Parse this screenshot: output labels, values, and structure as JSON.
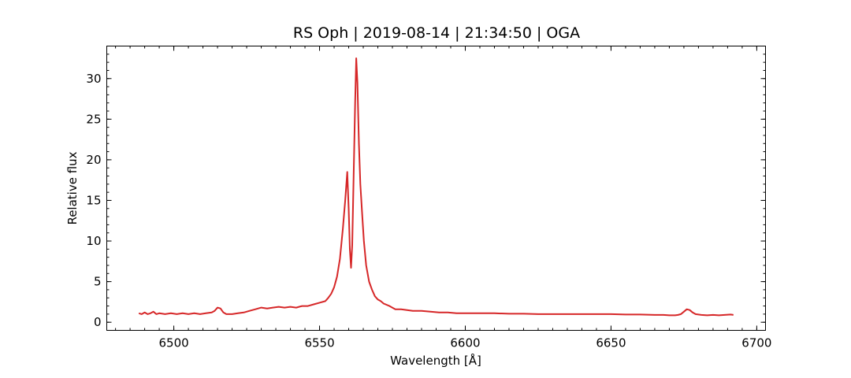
{
  "chart_data": {
    "type": "line",
    "title": "RS Oph | 2019-08-14 | 21:34:50 | OGA",
    "xlabel": "Wavelength [Å]",
    "ylabel": "Relative flux",
    "xlim": [
      6477,
      6703
    ],
    "ylim": [
      -1,
      34
    ],
    "xticks": [
      6500,
      6550,
      6600,
      6650,
      6700
    ],
    "yticks": [
      0,
      5,
      10,
      15,
      20,
      25,
      30
    ],
    "x_minor_step": 5,
    "y_minor_step": 1,
    "grid": false,
    "color": "#d62728",
    "series": [
      {
        "points": [
          [
            6488,
            1.1
          ],
          [
            6489,
            1.0
          ],
          [
            6490,
            1.2
          ],
          [
            6491,
            1.0
          ],
          [
            6492,
            1.1
          ],
          [
            6493,
            1.3
          ],
          [
            6494,
            1.0
          ],
          [
            6495,
            1.1
          ],
          [
            6497,
            1.0
          ],
          [
            6499,
            1.1
          ],
          [
            6501,
            1.0
          ],
          [
            6503,
            1.1
          ],
          [
            6505,
            1.0
          ],
          [
            6507,
            1.1
          ],
          [
            6509,
            1.0
          ],
          [
            6511,
            1.1
          ],
          [
            6513,
            1.2
          ],
          [
            6514,
            1.4
          ],
          [
            6515,
            1.8
          ],
          [
            6516,
            1.7
          ],
          [
            6517,
            1.2
          ],
          [
            6518,
            1.0
          ],
          [
            6520,
            1.0
          ],
          [
            6522,
            1.1
          ],
          [
            6524,
            1.2
          ],
          [
            6526,
            1.4
          ],
          [
            6528,
            1.6
          ],
          [
            6530,
            1.8
          ],
          [
            6532,
            1.7
          ],
          [
            6534,
            1.8
          ],
          [
            6536,
            1.9
          ],
          [
            6538,
            1.8
          ],
          [
            6540,
            1.9
          ],
          [
            6542,
            1.8
          ],
          [
            6544,
            2.0
          ],
          [
            6546,
            2.0
          ],
          [
            6548,
            2.2
          ],
          [
            6550,
            2.4
          ],
          [
            6552,
            2.6
          ],
          [
            6553,
            3.0
          ],
          [
            6554,
            3.5
          ],
          [
            6555,
            4.3
          ],
          [
            6556,
            5.6
          ],
          [
            6557,
            7.8
          ],
          [
            6558,
            11.5
          ],
          [
            6558.8,
            15.0
          ],
          [
            6559.5,
            18.5
          ],
          [
            6560.0,
            14.0
          ],
          [
            6560.4,
            9.0
          ],
          [
            6560.8,
            6.7
          ],
          [
            6561.2,
            9.5
          ],
          [
            6561.7,
            18.0
          ],
          [
            6562.2,
            27.0
          ],
          [
            6562.6,
            32.5
          ],
          [
            6563.0,
            29.5
          ],
          [
            6563.5,
            22.0
          ],
          [
            6564.0,
            17.0
          ],
          [
            6564.6,
            13.5
          ],
          [
            6565.2,
            10.0
          ],
          [
            6566.0,
            7.0
          ],
          [
            6567,
            5.0
          ],
          [
            6568,
            4.0
          ],
          [
            6569,
            3.2
          ],
          [
            6570,
            2.8
          ],
          [
            6571,
            2.6
          ],
          [
            6572,
            2.3
          ],
          [
            6574,
            2.0
          ],
          [
            6576,
            1.6
          ],
          [
            6578,
            1.6
          ],
          [
            6580,
            1.5
          ],
          [
            6582,
            1.4
          ],
          [
            6585,
            1.4
          ],
          [
            6588,
            1.3
          ],
          [
            6591,
            1.2
          ],
          [
            6594,
            1.2
          ],
          [
            6597,
            1.1
          ],
          [
            6600,
            1.1
          ],
          [
            6605,
            1.1
          ],
          [
            6610,
            1.1
          ],
          [
            6615,
            1.05
          ],
          [
            6620,
            1.05
          ],
          [
            6625,
            1.0
          ],
          [
            6630,
            1.0
          ],
          [
            6635,
            1.0
          ],
          [
            6640,
            1.0
          ],
          [
            6645,
            1.0
          ],
          [
            6650,
            1.0
          ],
          [
            6655,
            0.95
          ],
          [
            6660,
            0.95
          ],
          [
            6665,
            0.9
          ],
          [
            6668,
            0.9
          ],
          [
            6670,
            0.85
          ],
          [
            6672,
            0.85
          ],
          [
            6673,
            0.9
          ],
          [
            6674,
            1.0
          ],
          [
            6675,
            1.3
          ],
          [
            6676,
            1.6
          ],
          [
            6677,
            1.5
          ],
          [
            6678,
            1.2
          ],
          [
            6679,
            1.0
          ],
          [
            6681,
            0.9
          ],
          [
            6683,
            0.85
          ],
          [
            6685,
            0.9
          ],
          [
            6687,
            0.85
          ],
          [
            6689,
            0.9
          ],
          [
            6691,
            0.95
          ],
          [
            6692,
            0.9
          ]
        ]
      }
    ]
  }
}
